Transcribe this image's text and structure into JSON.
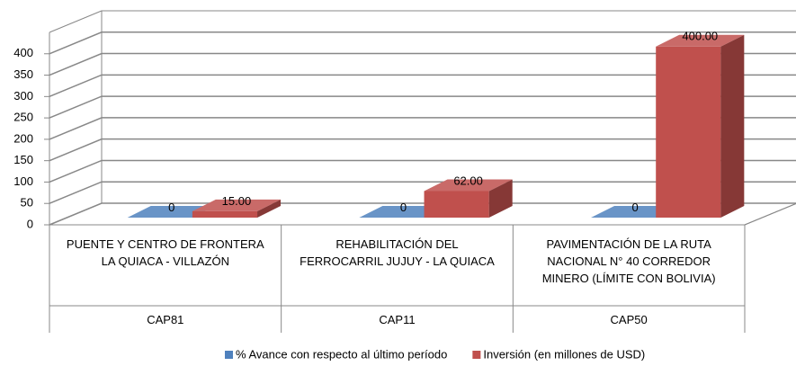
{
  "chart_data": {
    "type": "bar3d",
    "categories": [
      "PUENTE Y CENTRO DE FRONTERA LA QUIACA - VILLAZÓN",
      "REHABILITACIÓN DEL FERROCARRIL JUJUY - LA QUIACA",
      "PAVIMENTACIÓN DE LA RUTA NACIONAL N° 40 CORREDOR MINERO (LÍMITE CON BOLIVIA)"
    ],
    "category_codes": [
      "CAP81",
      "CAP11",
      "CAP50"
    ],
    "series": [
      {
        "name": "% Avance con respecto al último período",
        "color": "#4f81bd",
        "values": [
          0,
          0,
          0
        ],
        "value_labels": [
          "0",
          "0",
          "0"
        ]
      },
      {
        "name": "Inversión (en millones de USD)",
        "color": "#c0504d",
        "values": [
          15,
          62,
          400
        ],
        "value_labels": [
          "15.00",
          "62.00",
          "400.00"
        ]
      }
    ],
    "ylim": [
      0,
      450
    ],
    "yticks": [
      0,
      50,
      100,
      150,
      200,
      250,
      300,
      350,
      400
    ],
    "grid": true,
    "legend": "bottom"
  }
}
